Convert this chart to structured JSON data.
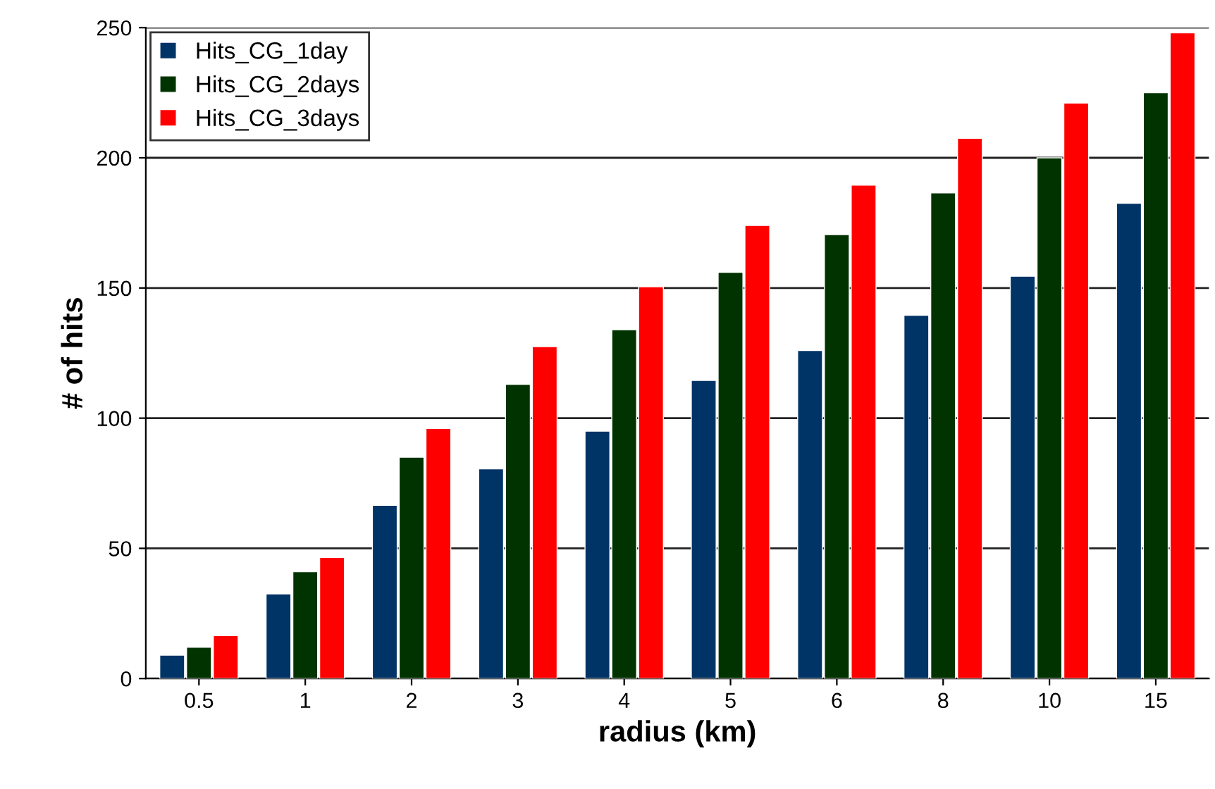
{
  "chart_data": {
    "type": "bar",
    "xlabel": "radius (km)",
    "ylabel": "# of hits",
    "categories": [
      "0.5",
      "1",
      "2",
      "3",
      "4",
      "5",
      "6",
      "8",
      "10",
      "15"
    ],
    "series": [
      {
        "name": "Hits_CG_1day",
        "color": "#003366",
        "values": [
          9,
          32.5,
          66.5,
          80.5,
          95,
          114.5,
          126,
          139.5,
          154.5,
          182.5
        ]
      },
      {
        "name": "Hits_CG_2days",
        "color": "#003300",
        "values": [
          12,
          41,
          85,
          113,
          134,
          156,
          170.5,
          186.5,
          200,
          225
        ]
      },
      {
        "name": "Hits_CG_3days",
        "color": "#ff0000",
        "values": [
          16.5,
          46.5,
          96,
          127.5,
          150.5,
          174,
          189.5,
          207.5,
          221,
          248
        ]
      }
    ],
    "ylim": [
      0,
      250
    ],
    "yticks": [
      0,
      50,
      100,
      150,
      200,
      250
    ],
    "grid": "y",
    "legend": "top left"
  }
}
